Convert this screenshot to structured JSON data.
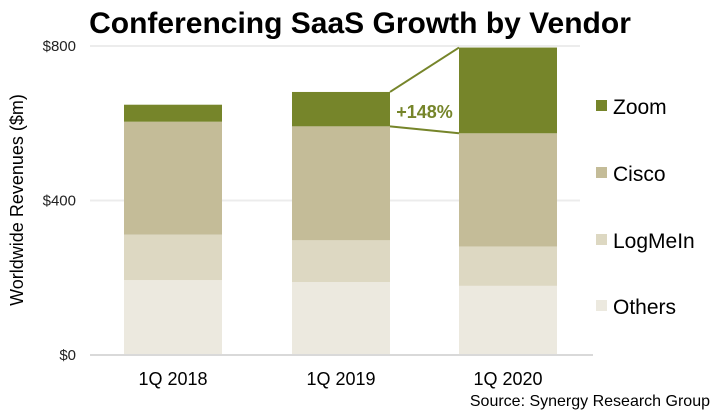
{
  "chart_data": {
    "type": "bar",
    "stacked": true,
    "title": "Conferencing SaaS Growth by Vendor",
    "xlabel": "",
    "ylabel": "Worldwide Revenues ($m)",
    "ylim": [
      0,
      800
    ],
    "yticks": [
      0,
      400,
      800
    ],
    "ytick_labels": [
      "$0",
      "$400",
      "$800"
    ],
    "grid": true,
    "categories": [
      "1Q 2018",
      "1Q 2019",
      "1Q 2020"
    ],
    "series": [
      {
        "name": "Others",
        "color": "#ece9df",
        "values": [
          194,
          189,
          179
        ]
      },
      {
        "name": "LogMeIn",
        "color": "#ddd8c2",
        "values": [
          118,
          108,
          102
        ]
      },
      {
        "name": "Cisco",
        "color": "#c4bc98",
        "values": [
          292,
          295,
          293
        ]
      },
      {
        "name": "Zoom",
        "color": "#76852a",
        "values": [
          44,
          89,
          222
        ]
      }
    ],
    "legend": {
      "placement": "right",
      "order": [
        "Zoom",
        "Cisco",
        "LogMeIn",
        "Others"
      ]
    },
    "annotation": {
      "text": "+148%",
      "from_category": "1Q 2019",
      "to_category": "1Q 2020",
      "series": "Zoom",
      "color": "#76852a"
    },
    "source": "Source: Synergy Research Group"
  }
}
